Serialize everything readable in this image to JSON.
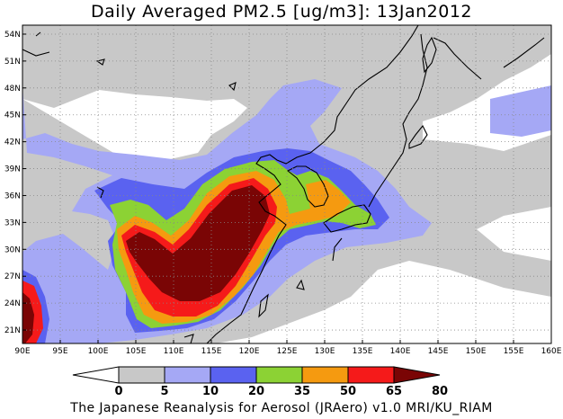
{
  "title": "Daily Averaged PM2.5 [ug/m3]: 13Jan2012",
  "footer": "The Japanese Reanalysis for Aerosol (JRAero) v1.0 MRI/KU_RIAM",
  "map": {
    "lon_range": [
      90,
      160
    ],
    "lat_range": [
      19.5,
      55
    ],
    "lon_ticks": [
      "90E",
      "95E",
      "100E",
      "105E",
      "110E",
      "115E",
      "120E",
      "125E",
      "130E",
      "135E",
      "140E",
      "145E",
      "150E",
      "155E",
      "160E"
    ],
    "lat_ticks": [
      "21N",
      "24N",
      "27N",
      "30N",
      "33N",
      "36N",
      "39N",
      "42N",
      "45N",
      "48N",
      "51N",
      "54N"
    ],
    "grid": true,
    "colors": {
      "0-5": "#ffffff",
      "5-10": "#c8c8c8",
      "10-20": "#a5a8f5",
      "20-35": "#5a62f0",
      "35-50": "#8cd234",
      "50-65": "#f59a10",
      "65-80": "#f51a1a",
      "80+": "#7a0505"
    }
  },
  "colorbar": {
    "levels": [
      "0",
      "5",
      "10",
      "20",
      "35",
      "50",
      "65",
      "80"
    ],
    "colors": [
      "#ffffff",
      "#c8c8c8",
      "#a5a8f5",
      "#5a62f0",
      "#8cd234",
      "#f59a10",
      "#f51a1a",
      "#7a0505"
    ]
  }
}
